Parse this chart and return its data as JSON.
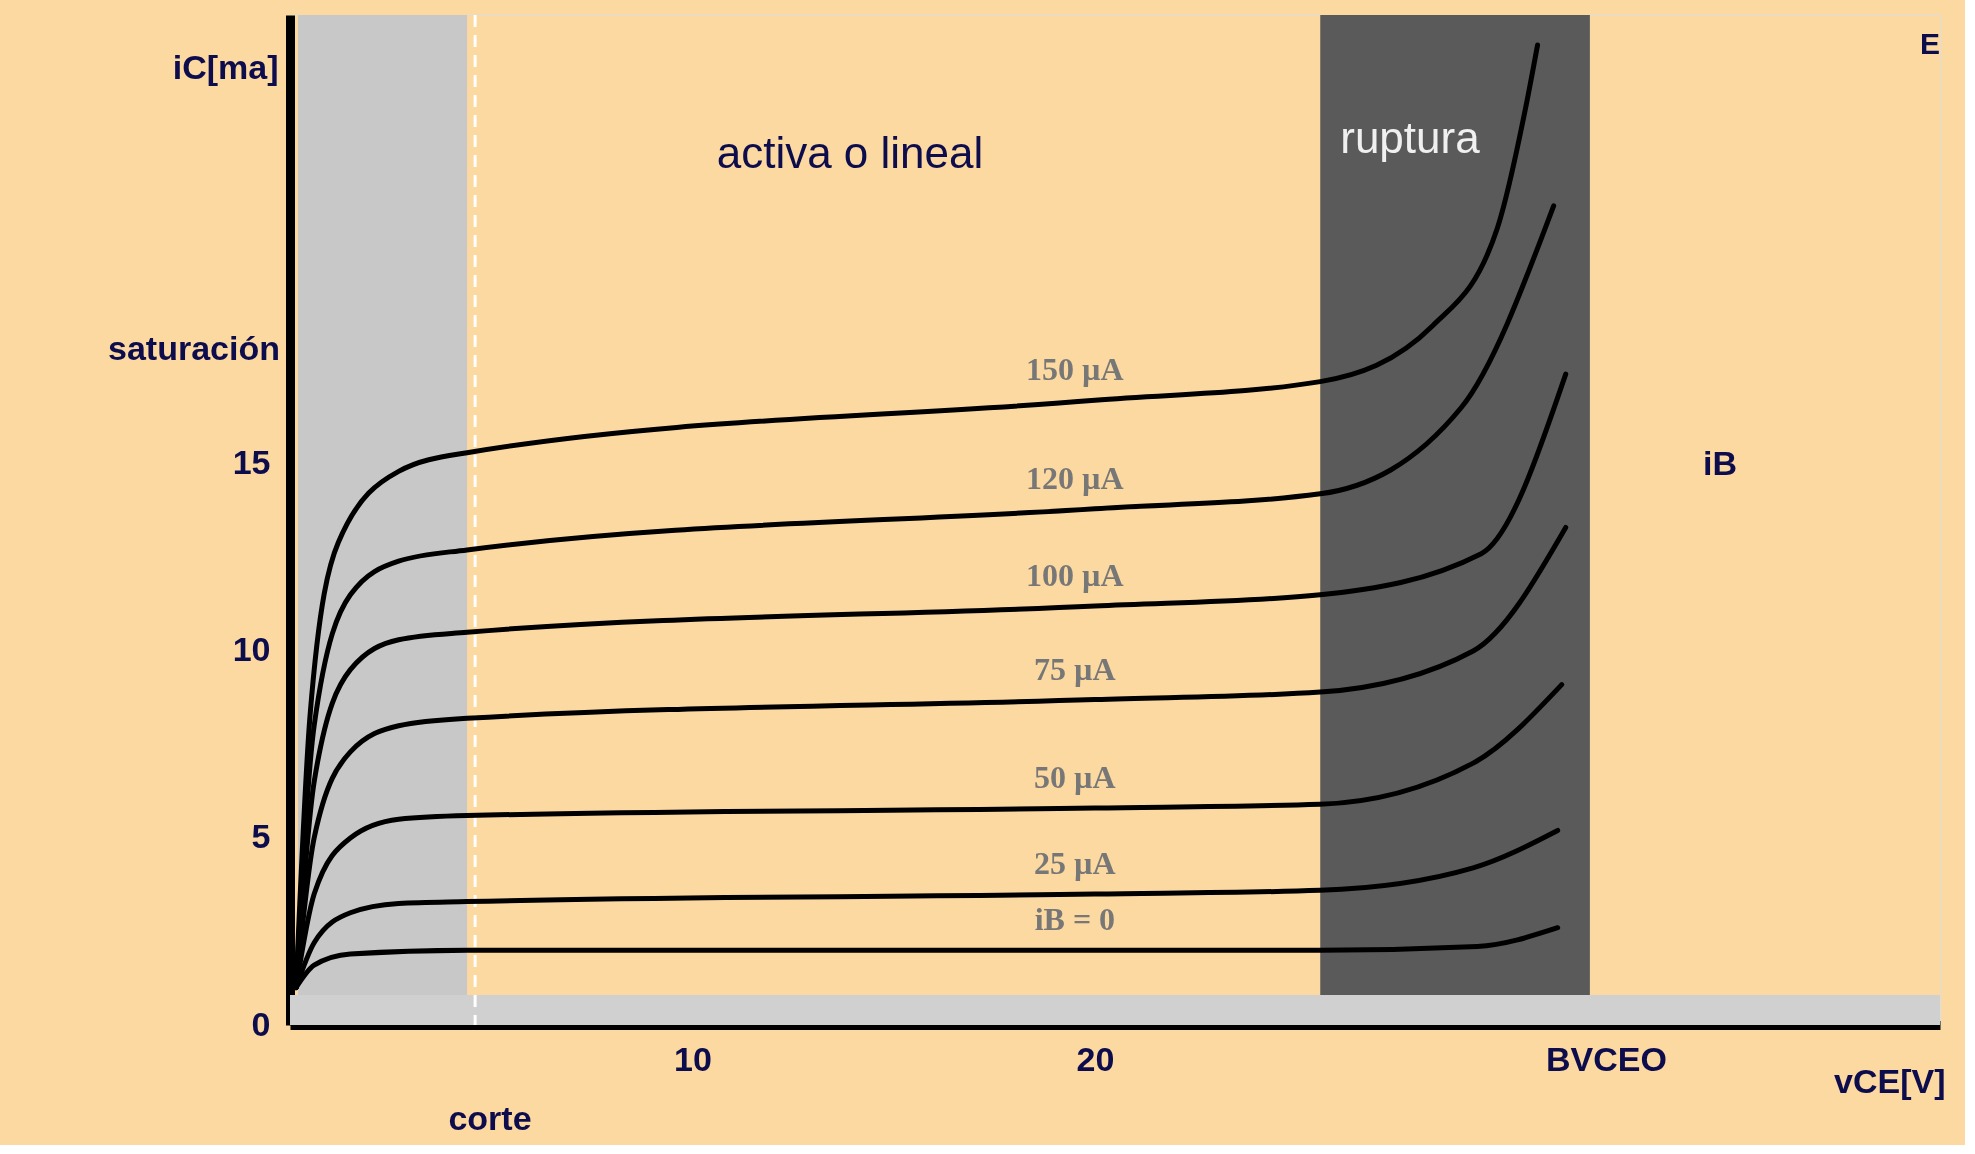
{
  "chart_data": {
    "type": "line",
    "xlabel": "vCE[V]",
    "ylabel": "iC[ma]",
    "xlim": [
      0,
      41
    ],
    "ylim": [
      0,
      27
    ],
    "xticks": [
      10,
      20,
      {
        "value": 32.7,
        "label": "BVCEO"
      }
    ],
    "yticks": [
      0,
      5,
      10,
      15
    ],
    "grid": false,
    "marker": "none",
    "line_style": "solid",
    "series": [
      {
        "name": "150 µA",
        "color": "#000000",
        "x": [
          0.15,
          0.5,
          1.2,
          2.7,
          4.4,
          20,
          25.6,
          28.4,
          30,
          30.7,
          31
        ],
        "values": [
          1,
          8.3,
          12.9,
          14.8,
          15.3,
          16.7,
          17.2,
          18.7,
          21.3,
          24.5,
          26.2
        ]
      },
      {
        "name": "120 µA",
        "color": "#000000",
        "x": [
          0.15,
          0.6,
          1.5,
          2.7,
          4.4,
          20,
          25.6,
          29.1,
          31.4
        ],
        "values": [
          1,
          8,
          11.5,
          12.4,
          12.7,
          13.8,
          14.2,
          16.5,
          21.9
        ]
      },
      {
        "name": "100 µA",
        "color": "#000000",
        "x": [
          0.15,
          0.6,
          1.5,
          2.7,
          4.4,
          20,
          25.6,
          29.6,
          31.7
        ],
        "values": [
          1,
          6.5,
          9.5,
          10.3,
          10.5,
          11.2,
          11.5,
          12.6,
          17.4
        ]
      },
      {
        "name": "75 µA",
        "color": "#000000",
        "x": [
          0.15,
          0.6,
          1.5,
          2.7,
          4.4,
          20,
          25.6,
          29.4,
          31.7
        ],
        "values": [
          1,
          5,
          7.3,
          8,
          8.2,
          8.7,
          8.9,
          10,
          13.3
        ]
      },
      {
        "name": "50 µA",
        "color": "#000000",
        "x": [
          0.15,
          0.6,
          1.5,
          2.7,
          4.4,
          20,
          25.6,
          29.4,
          31.6
        ],
        "values": [
          1,
          3.5,
          5,
          5.5,
          5.6,
          5.8,
          5.9,
          7,
          9.1
        ]
      },
      {
        "name": "25 µA",
        "color": "#000000",
        "x": [
          0.15,
          0.6,
          1.5,
          2.7,
          4.4,
          20,
          25.6,
          29.4,
          31.5
        ],
        "values": [
          1,
          2.2,
          3,
          3.25,
          3.3,
          3.5,
          3.6,
          4.2,
          5.2
        ]
      },
      {
        "name": "iB = 0",
        "color": "#000000",
        "x": [
          0.15,
          0.6,
          1.5,
          4.4,
          20,
          25.6,
          29.5,
          31.5
        ],
        "values": [
          1,
          1.6,
          1.9,
          2,
          2,
          2,
          2.1,
          2.6
        ]
      }
    ],
    "bands": [
      {
        "axis": "x",
        "from": 0.2,
        "to": 4.4,
        "label": "saturación",
        "color": "#c8c8c8"
      },
      {
        "axis": "x",
        "from": 25.6,
        "to": 32.3,
        "label": "ruptura",
        "color": "#5a5a5a"
      },
      {
        "axis": "y",
        "from": 0,
        "to": 0.8,
        "label": "corte",
        "color": "#d0d0d0"
      }
    ],
    "ref_lines": [
      {
        "axis": "x",
        "value": 4.6,
        "color": "#ffffff",
        "line_style": "dashed"
      }
    ],
    "annotations": [
      "activa o lineal",
      "iB",
      "E"
    ]
  }
}
